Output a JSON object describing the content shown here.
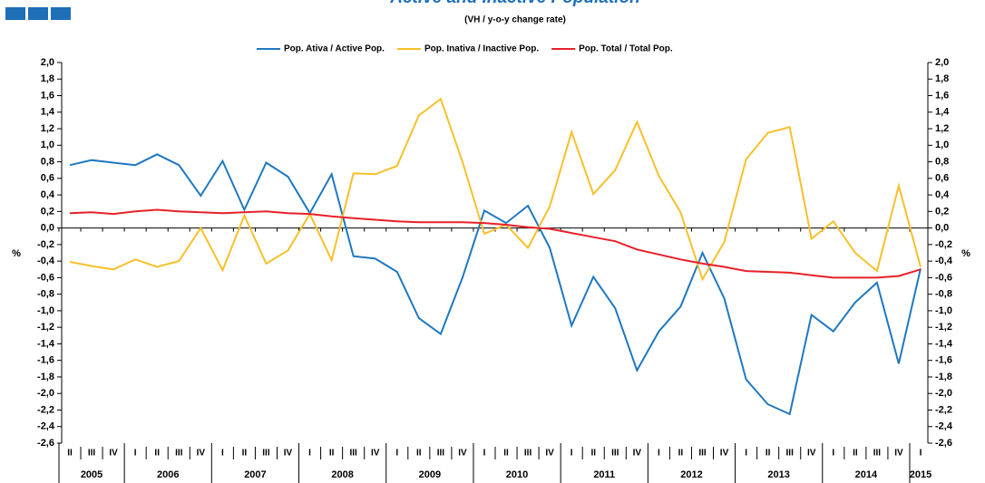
{
  "chart_data": {
    "type": "line",
    "title": "Active and Inactive Population",
    "subtitle": "(VH / y-o-y change rate)",
    "y_label": "%",
    "categories": [
      "II",
      "III",
      "IV",
      "I",
      "II",
      "III",
      "IV",
      "I",
      "II",
      "III",
      "IV",
      "I",
      "II",
      "III",
      "IV",
      "I",
      "II",
      "III",
      "IV",
      "I",
      "II",
      "III",
      "IV",
      "I",
      "II",
      "III",
      "IV",
      "I",
      "II",
      "III",
      "IV",
      "I",
      "II",
      "III",
      "IV",
      "I",
      "II",
      "III",
      "IV",
      "I"
    ],
    "years": [
      "2005",
      "2006",
      "2007",
      "2008",
      "2009",
      "2010",
      "2011",
      "2012",
      "2013",
      "2014",
      "2015"
    ],
    "series": [
      {
        "name": "Pop. Ativa / Active Pop.",
        "color": "#1f78c0",
        "values": [
          0.76,
          0.82,
          0.79,
          0.76,
          0.89,
          0.76,
          0.39,
          0.81,
          0.22,
          0.79,
          0.62,
          0.18,
          0.65,
          -0.34,
          -0.37,
          -0.53,
          -1.09,
          -1.28,
          -0.6,
          0.21,
          0.06,
          0.27,
          -0.24,
          -1.18,
          -0.59,
          -0.97,
          -1.72,
          -1.25,
          -0.95,
          -0.3,
          -0.85,
          -1.83,
          -2.13,
          -2.25,
          -1.05,
          -1.25,
          -0.9,
          -0.66,
          -1.64,
          -0.49
        ]
      },
      {
        "name": "Pop. Inativa / Inactive Pop.",
        "color": "#f7c02a",
        "values": [
          -0.41,
          -0.46,
          -0.5,
          -0.38,
          -0.47,
          -0.4,
          0.0,
          -0.51,
          0.15,
          -0.43,
          -0.27,
          0.17,
          -0.39,
          0.66,
          0.65,
          0.75,
          1.36,
          1.56,
          0.8,
          -0.07,
          0.04,
          -0.24,
          0.26,
          1.16,
          0.41,
          0.7,
          1.28,
          0.63,
          0.19,
          -0.62,
          -0.17,
          0.83,
          1.15,
          1.22,
          -0.13,
          0.08,
          -0.3,
          -0.52,
          0.51,
          -0.47
        ]
      },
      {
        "name": "Pop. Total / Total Pop.",
        "color": "#e8202a",
        "values": [
          0.18,
          0.19,
          0.17,
          0.2,
          0.22,
          0.2,
          0.19,
          0.18,
          0.19,
          0.2,
          0.18,
          0.17,
          0.14,
          0.12,
          0.1,
          0.08,
          0.07,
          0.07,
          0.07,
          0.06,
          0.04,
          0.01,
          -0.01,
          -0.06,
          -0.11,
          -0.16,
          -0.26,
          -0.32,
          -0.38,
          -0.43,
          -0.47,
          -0.52,
          -0.53,
          -0.54,
          -0.57,
          -0.6,
          -0.6,
          -0.6,
          -0.58,
          -0.5
        ]
      }
    ],
    "ylim": [
      -2.6,
      2.0
    ],
    "yticks": [
      {
        "value": 2.0,
        "label": "2,0"
      },
      {
        "value": 1.8,
        "label": "1,8"
      },
      {
        "value": 1.6,
        "label": "1,6"
      },
      {
        "value": 1.4,
        "label": "1,4"
      },
      {
        "value": 1.2,
        "label": "1,2"
      },
      {
        "value": 1.0,
        "label": "1,0"
      },
      {
        "value": 0.8,
        "label": "0,8"
      },
      {
        "value": 0.6,
        "label": "0,6"
      },
      {
        "value": 0.4,
        "label": "0,4"
      },
      {
        "value": 0.2,
        "label": "0,2"
      },
      {
        "value": 0.0,
        "label": "0,0"
      },
      {
        "value": -0.2,
        "label": "-0,2"
      },
      {
        "value": -0.4,
        "label": "-0,4"
      },
      {
        "value": -0.6,
        "label": "-0,6"
      },
      {
        "value": -0.8,
        "label": "-0,8"
      },
      {
        "value": -1.0,
        "label": "-1,0"
      },
      {
        "value": -1.2,
        "label": "-1,2"
      },
      {
        "value": -1.4,
        "label": "-1,4"
      },
      {
        "value": -1.6,
        "label": "-1,6"
      },
      {
        "value": -1.8,
        "label": "-1,8"
      },
      {
        "value": -2.0,
        "label": "-2,0"
      },
      {
        "value": -2.2,
        "label": "-2,2"
      },
      {
        "value": -2.4,
        "label": "-2,4"
      },
      {
        "value": -2.6,
        "label": "-2,6"
      }
    ],
    "legend": "top"
  }
}
